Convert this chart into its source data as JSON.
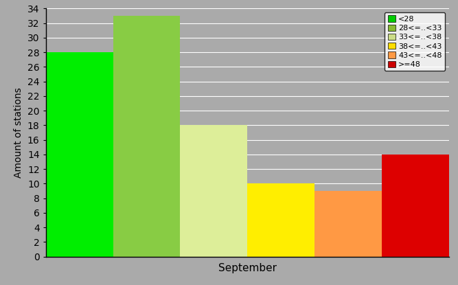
{
  "values": [
    28,
    33,
    18,
    10,
    9,
    14
  ],
  "bar_colors": [
    "#00ee00",
    "#88cc44",
    "#ddee99",
    "#ffee00",
    "#ff9944",
    "#dd0000"
  ],
  "legend_labels": [
    "<28",
    "28<=..<33",
    "33<=..<38",
    "38<=..<43",
    "43<=..<48",
    ">=48"
  ],
  "legend_colors": [
    "#00cc00",
    "#88bb33",
    "#ccdd88",
    "#ffdd00",
    "#ff9944",
    "#cc0000"
  ],
  "xlabel": "September",
  "ylabel": "Amount of stations",
  "ylim": [
    0,
    34
  ],
  "yticks": [
    0,
    2,
    4,
    6,
    8,
    10,
    12,
    14,
    16,
    18,
    20,
    22,
    24,
    26,
    28,
    30,
    32,
    34
  ],
  "background_color": "#aaaaaa",
  "plot_bg_color": "#aaaaaa",
  "bar_width": 1.0,
  "figwidth": 6.67,
  "figheight": 4.15,
  "dpi": 100
}
